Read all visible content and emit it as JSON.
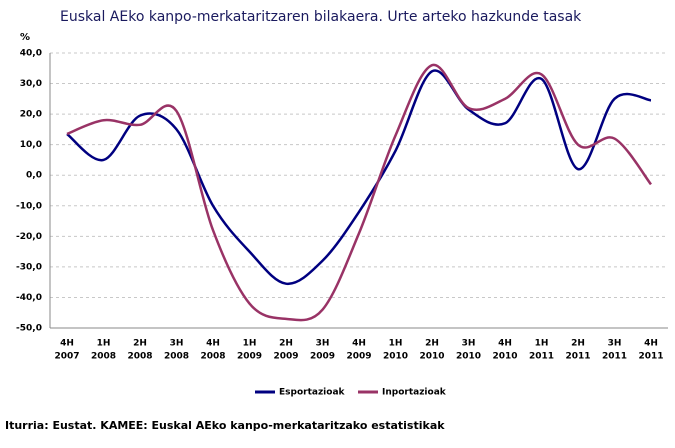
{
  "chart_data": {
    "type": "line",
    "title": "Euskal AEko kanpo-merkataritzaren bilakaera. Urte arteko hazkunde tasak",
    "y_label": "%",
    "source": "Iturria: Eustat. KAMEE: Euskal AEko kanpo-merkataritzako estatistikak",
    "categories": [
      [
        "4H",
        "2007"
      ],
      [
        "1H",
        "2008"
      ],
      [
        "2H",
        "2008"
      ],
      [
        "3H",
        "2008"
      ],
      [
        "4H",
        "2008"
      ],
      [
        "1H",
        "2009"
      ],
      [
        "2H",
        "2009"
      ],
      [
        "3H",
        "2009"
      ],
      [
        "4H",
        "2009"
      ],
      [
        "1H",
        "2010"
      ],
      [
        "2H",
        "2010"
      ],
      [
        "3H",
        "2010"
      ],
      [
        "4H",
        "2010"
      ],
      [
        "1H",
        "2011"
      ],
      [
        "2H",
        "2011"
      ],
      [
        "3H",
        "2011"
      ],
      [
        "4H",
        "2011"
      ]
    ],
    "series": [
      {
        "name": "Esportazioak",
        "color": "#000080",
        "values": [
          13.5,
          5,
          19.5,
          15,
          -10,
          -25,
          -35.5,
          -28,
          -12,
          8,
          34,
          21.5,
          17,
          31.5,
          2,
          25,
          24.5
        ]
      },
      {
        "name": "Inportazioak",
        "color": "#993366",
        "values": [
          13.5,
          18,
          16.5,
          21,
          -18,
          -42,
          -47,
          -44,
          -19,
          13,
          36,
          22,
          25,
          33,
          10,
          12,
          -3
        ]
      }
    ],
    "ylim": [
      -50,
      40
    ],
    "yticks": [
      {
        "value": -50,
        "label": "-50,0"
      },
      {
        "value": -40,
        "label": "-40,0"
      },
      {
        "value": -30,
        "label": "-30,0"
      },
      {
        "value": -20,
        "label": "-20,0"
      },
      {
        "value": -10,
        "label": "-10,0"
      },
      {
        "value": 0,
        "label": "0,0"
      },
      {
        "value": 10,
        "label": "10,0"
      },
      {
        "value": 20,
        "label": "20,0"
      },
      {
        "value": 30,
        "label": "30,0"
      },
      {
        "value": 40,
        "label": "40,0"
      }
    ],
    "grid": true
  }
}
